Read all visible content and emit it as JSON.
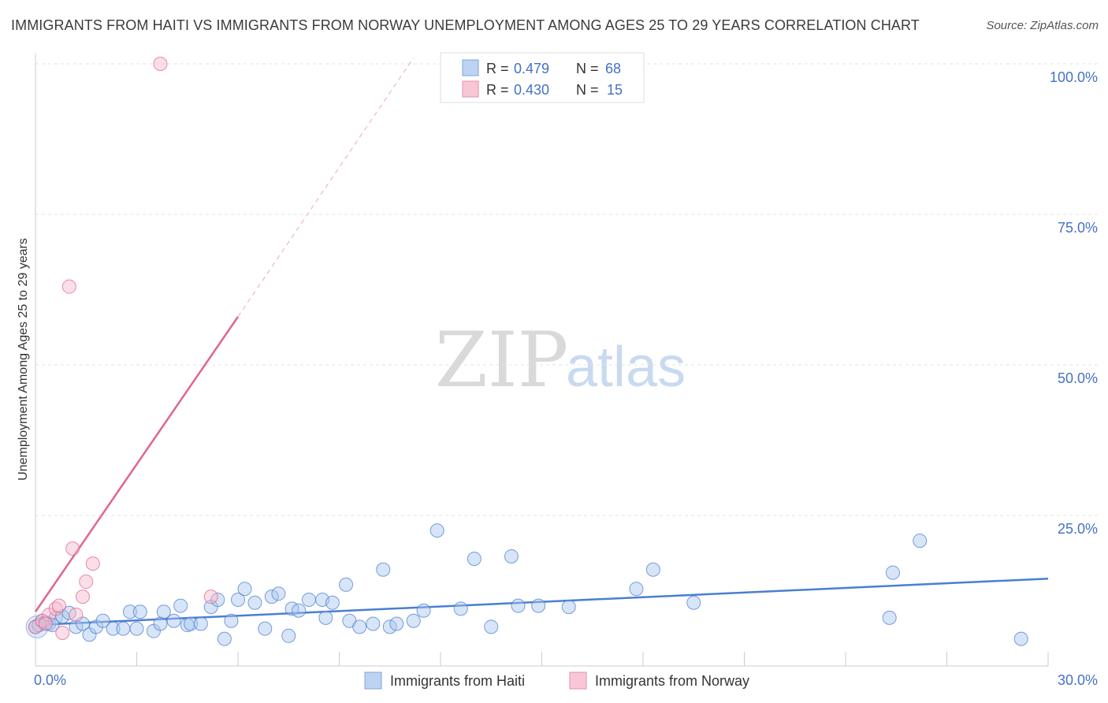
{
  "header": {
    "title": "IMMIGRANTS FROM HAITI VS IMMIGRANTS FROM NORWAY UNEMPLOYMENT AMONG AGES 25 TO 29 YEARS CORRELATION CHART",
    "source": "Source: ZipAtlas.com"
  },
  "watermark": {
    "zip": "ZIP",
    "atlas": "atlas"
  },
  "stats": [
    {
      "r_label": "R =",
      "r_value": "0.479",
      "n_label": "N =",
      "n_value": "68"
    },
    {
      "r_label": "R =",
      "r_value": "0.430",
      "n_label": "N =",
      "n_value": "15"
    }
  ],
  "chart_data": {
    "type": "scatter",
    "title": "IMMIGRANTS FROM HAITI VS IMMIGRANTS FROM NORWAY UNEMPLOYMENT AMONG AGES 25 TO 29 YEARS CORRELATION CHART",
    "xlabel": "",
    "ylabel": "Unemployment Among Ages 25 to 29 years",
    "xlim": [
      0,
      30
    ],
    "ylim": [
      0,
      105
    ],
    "x_tick_labels": [
      "0.0%",
      "30.0%"
    ],
    "y_ticks": [
      25,
      50,
      75,
      100
    ],
    "y_tick_labels": [
      "25.0%",
      "50.0%",
      "75.0%",
      "100.0%"
    ],
    "grid": true,
    "legend_position": "bottom-center",
    "series": [
      {
        "name": "Immigrants from Haiti",
        "color": "#4a7fd1",
        "fill": "#a9c6ee",
        "points": [
          [
            0.0,
            6.5
          ],
          [
            0.2,
            7.5
          ],
          [
            0.4,
            7.0
          ],
          [
            0.6,
            8.0
          ],
          [
            0.8,
            8.2
          ],
          [
            1.0,
            8.8
          ],
          [
            1.2,
            6.5
          ],
          [
            1.4,
            7.0
          ],
          [
            1.6,
            5.2
          ],
          [
            1.8,
            6.5
          ],
          [
            2.0,
            7.5
          ],
          [
            2.3,
            6.2
          ],
          [
            2.6,
            6.2
          ],
          [
            2.8,
            9.0
          ],
          [
            3.0,
            6.2
          ],
          [
            3.1,
            9.0
          ],
          [
            3.5,
            5.8
          ],
          [
            3.7,
            7.0
          ],
          [
            3.8,
            9.0
          ],
          [
            4.1,
            7.5
          ],
          [
            4.3,
            10.0
          ],
          [
            4.5,
            6.8
          ],
          [
            4.6,
            7.0
          ],
          [
            4.9,
            7.0
          ],
          [
            5.2,
            9.8
          ],
          [
            5.4,
            11.0
          ],
          [
            5.6,
            4.5
          ],
          [
            5.8,
            7.5
          ],
          [
            6.0,
            11.0
          ],
          [
            6.2,
            12.8
          ],
          [
            6.5,
            10.5
          ],
          [
            6.8,
            6.2
          ],
          [
            7.0,
            11.5
          ],
          [
            7.2,
            12.0
          ],
          [
            7.5,
            5.0
          ],
          [
            7.6,
            9.5
          ],
          [
            7.8,
            9.2
          ],
          [
            8.1,
            11.0
          ],
          [
            8.5,
            11.0
          ],
          [
            8.6,
            8.0
          ],
          [
            8.8,
            10.5
          ],
          [
            9.2,
            13.5
          ],
          [
            9.3,
            7.5
          ],
          [
            9.6,
            6.5
          ],
          [
            10.0,
            7.0
          ],
          [
            10.3,
            16.0
          ],
          [
            10.5,
            6.5
          ],
          [
            10.7,
            7.0
          ],
          [
            11.2,
            7.5
          ],
          [
            11.5,
            9.2
          ],
          [
            11.9,
            22.5
          ],
          [
            12.6,
            9.5
          ],
          [
            13.0,
            17.8
          ],
          [
            13.5,
            6.5
          ],
          [
            14.1,
            18.2
          ],
          [
            14.3,
            10.0
          ],
          [
            14.9,
            10.0
          ],
          [
            15.8,
            9.8
          ],
          [
            17.8,
            12.8
          ],
          [
            18.3,
            16.0
          ],
          [
            19.5,
            10.5
          ],
          [
            25.3,
            8.0
          ],
          [
            25.4,
            15.5
          ],
          [
            26.2,
            20.8
          ],
          [
            29.2,
            4.5
          ],
          [
            0.1,
            6.8
          ],
          [
            0.3,
            7.2
          ],
          [
            0.5,
            6.8
          ]
        ],
        "trendline": {
          "x": [
            0,
            30
          ],
          "y": [
            6.8,
            14.5
          ]
        }
      },
      {
        "name": "Immigrants from Norway",
        "color": "#e0658d",
        "fill": "#f6b8cc",
        "points": [
          [
            0.0,
            6.5
          ],
          [
            0.2,
            7.5
          ],
          [
            0.4,
            8.5
          ],
          [
            0.6,
            9.5
          ],
          [
            0.7,
            10.0
          ],
          [
            0.8,
            5.5
          ],
          [
            1.0,
            63.0
          ],
          [
            1.1,
            19.5
          ],
          [
            1.2,
            8.5
          ],
          [
            1.4,
            11.5
          ],
          [
            1.5,
            14.0
          ],
          [
            1.7,
            17.0
          ],
          [
            3.7,
            100.0
          ],
          [
            5.2,
            11.5
          ],
          [
            0.3,
            7.0
          ]
        ],
        "trendline": {
          "x": [
            0,
            6.0
          ],
          "y": [
            9.0,
            58.0
          ]
        },
        "trendline_extension": {
          "x": [
            6.0,
            11.2
          ],
          "y": [
            58.0,
            101.0
          ]
        }
      }
    ]
  }
}
